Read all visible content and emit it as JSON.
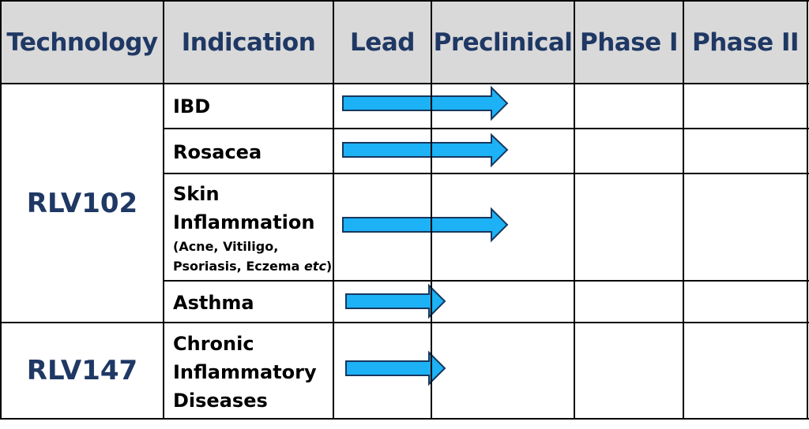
{
  "table": {
    "headers": [
      "Technology",
      "Indication",
      "Lead",
      "Preclinical",
      "Phase I",
      "Phase II"
    ],
    "rows": [
      {
        "technology": "RLV102",
        "indication": "IBD",
        "progress_stage": "Preclinical"
      },
      {
        "technology": "RLV102",
        "indication": "Rosacea",
        "progress_stage": "Preclinical"
      },
      {
        "technology": "RLV102",
        "indication": "Skin Inflammation",
        "note_a": "(Acne, Vitiligo,",
        "note_b": "Psoriasis, Eczema ",
        "note_c": "etc",
        "note_d": ")",
        "progress_stage": "Preclinical"
      },
      {
        "technology": "RLV102",
        "indication": "Asthma",
        "progress_stage": "Lead"
      },
      {
        "technology": "RLV147",
        "indication": "Chronic Inflammatory Diseases",
        "progress_stage": "Lead"
      }
    ],
    "technologies": [
      "RLV102",
      "RLV147"
    ],
    "indication_lines": {
      "skin_1": "Skin",
      "skin_2": "Inflammation",
      "chronic_1": "Chronic",
      "chronic_2": "Inflammatory",
      "chronic_3": "Diseases"
    }
  },
  "colors": {
    "header_bg": "#d9d9d9",
    "header_text": "#1f3864",
    "arrow_fill": "#1cb2f5",
    "arrow_stroke": "#17375e",
    "grid": "#000000"
  }
}
